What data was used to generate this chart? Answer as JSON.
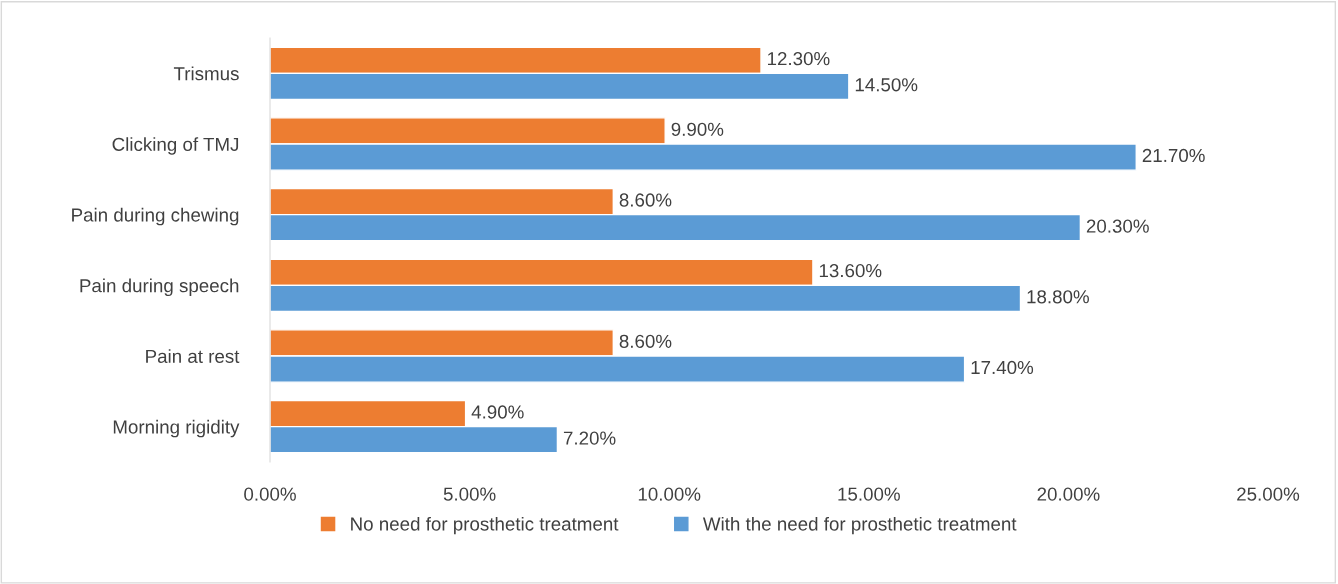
{
  "chart_data": {
    "type": "bar",
    "orientation": "horizontal",
    "categories": [
      "Trismus",
      "Clicking of TMJ",
      "Pain during chewing",
      "Pain during speech",
      "Pain at rest",
      "Morning rigidity"
    ],
    "series": [
      {
        "name": "No need for prosthetic treatment",
        "color": "#ed7d31",
        "values": [
          12.3,
          9.9,
          8.6,
          13.6,
          8.6,
          4.9
        ],
        "value_labels": [
          "12.30%",
          "9.90%",
          "8.60%",
          "13.60%",
          "8.60%",
          "4.90%"
        ]
      },
      {
        "name": "With the need for prosthetic treatment",
        "color": "#5b9bd5",
        "values": [
          14.5,
          21.7,
          20.3,
          18.8,
          17.4,
          7.2
        ],
        "value_labels": [
          "14.50%",
          "21.70%",
          "20.30%",
          "18.80%",
          "17.40%",
          "7.20%"
        ]
      }
    ],
    "xlim": [
      0,
      25
    ],
    "xticks": [
      {
        "value": 0,
        "label": "0.00%"
      },
      {
        "value": 5,
        "label": "5.00%"
      },
      {
        "value": 10,
        "label": "10.00%"
      },
      {
        "value": 15,
        "label": "15.00%"
      },
      {
        "value": 20,
        "label": "20.00%"
      },
      {
        "value": 25,
        "label": "25.00%"
      }
    ],
    "grid": false,
    "legend": "bottom"
  }
}
